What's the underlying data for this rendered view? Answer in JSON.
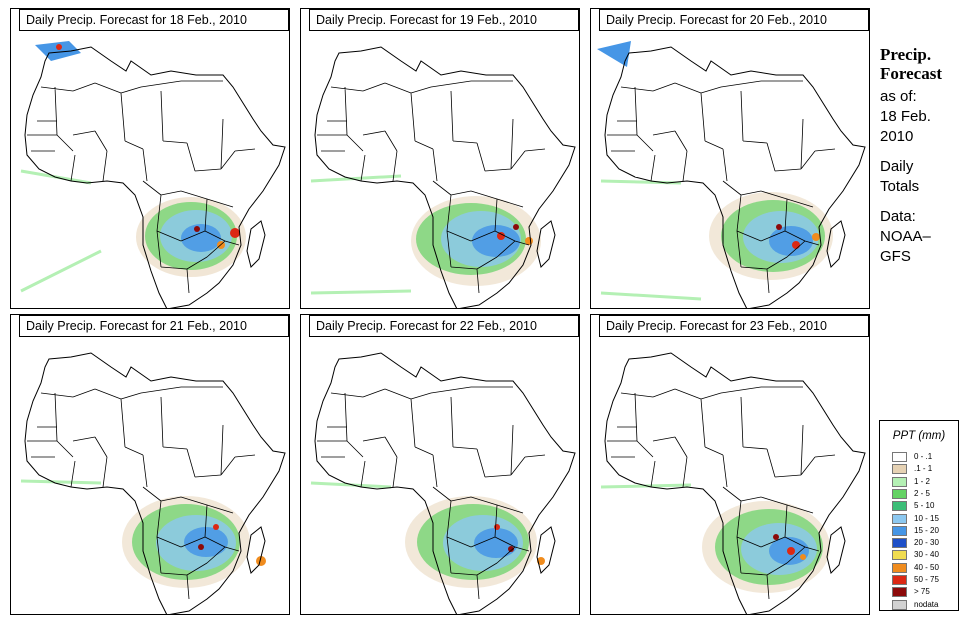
{
  "panels": [
    {
      "title": "Daily Precip. Forecast for  18 Feb., 2010"
    },
    {
      "title": "Daily Precip. Forecast for  19 Feb., 2010"
    },
    {
      "title": "Daily Precip. Forecast for  20 Feb., 2010"
    },
    {
      "title": "Daily Precip. Forecast for  21 Feb., 2010"
    },
    {
      "title": "Daily Precip. Forecast for  22 Feb., 2010"
    },
    {
      "title": "Daily Precip. Forecast for  23 Feb., 2010"
    }
  ],
  "sidebar": {
    "heading1": "Precip.",
    "heading2": "Forecast",
    "line1": "as of:",
    "line2": "18 Feb.",
    "line3": "2010",
    "line4": "Daily",
    "line5": "Totals",
    "line6": "Data:",
    "line7": "NOAA–",
    "line8": "GFS"
  },
  "legend": {
    "title": "PPT (mm)",
    "items": [
      {
        "label": "0 - .1",
        "color": "#ffffff"
      },
      {
        "label": ".1 - 1",
        "color": "#e6d2b4"
      },
      {
        "label": "1 - 2",
        "color": "#b4f0b4"
      },
      {
        "label": "2 - 5",
        "color": "#64d264"
      },
      {
        "label": "5 - 10",
        "color": "#3cbe78"
      },
      {
        "label": "10 - 15",
        "color": "#8cc8f0"
      },
      {
        "label": "15 - 20",
        "color": "#4696e6"
      },
      {
        "label": "20 - 30",
        "color": "#1e50c8"
      },
      {
        "label": "30 - 40",
        "color": "#f0dc50"
      },
      {
        "label": "40 - 50",
        "color": "#f08c1e"
      },
      {
        "label": "50 - 75",
        "color": "#dc2814"
      },
      {
        "label": "> 75",
        "color": "#8c0a0a"
      },
      {
        "label": "nodata",
        "color": "#d2d2d2"
      }
    ]
  }
}
